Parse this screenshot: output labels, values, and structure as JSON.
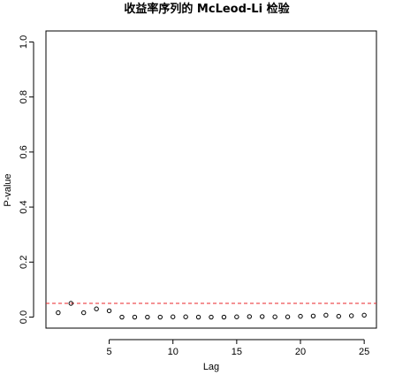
{
  "chart_data": {
    "type": "scatter",
    "title": "收益率序列的 McLeod-Li 检验",
    "xlabel": "Lag",
    "ylabel": "P-value",
    "xlim": [
      0.04,
      25.96
    ],
    "ylim": [
      -0.04,
      1.04
    ],
    "x_ticks": [
      5,
      10,
      15,
      20,
      25
    ],
    "y_ticks": [
      0.0,
      0.2,
      0.4,
      0.6,
      0.8,
      1.0
    ],
    "y_tick_labels": [
      "0.0",
      "0.2",
      "0.4",
      "0.6",
      "0.8",
      "1.0"
    ],
    "reference_line": {
      "y": 0.05,
      "style": "dashed",
      "color": "#e8262a"
    },
    "grid": false,
    "x": [
      1,
      2,
      3,
      4,
      5,
      6,
      7,
      8,
      9,
      10,
      11,
      12,
      13,
      14,
      15,
      16,
      17,
      18,
      19,
      20,
      21,
      22,
      23,
      24,
      25
    ],
    "values": [
      0.016,
      0.05,
      0.016,
      0.03,
      0.023,
      0.0,
      0.0,
      0.0,
      0.0,
      0.001,
      0.001,
      0.0,
      0.0,
      0.0,
      0.001,
      0.002,
      0.002,
      0.001,
      0.001,
      0.003,
      0.004,
      0.007,
      0.003,
      0.005,
      0.007
    ]
  }
}
